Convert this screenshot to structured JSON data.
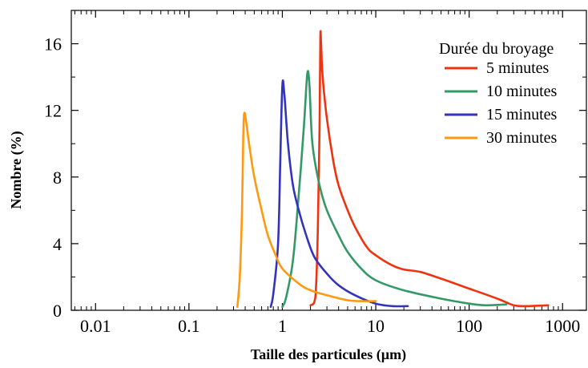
{
  "chart_data": {
    "type": "line",
    "title": "",
    "xlabel": "Taille des particules (µm)",
    "ylabel": "Nombre (%)",
    "x_scale": "log",
    "xlim": [
      0.0055,
      1800
    ],
    "ylim": [
      0,
      18
    ],
    "x_ticks": [
      0.01,
      0.1,
      1,
      10,
      100,
      1000
    ],
    "x_tick_labels": [
      "0.01",
      "0.1",
      "1",
      "10",
      "100",
      "1000"
    ],
    "y_ticks": [
      0,
      4,
      8,
      12,
      16
    ],
    "y_tick_labels": [
      "0",
      "4",
      "8",
      "12",
      "16"
    ],
    "grid": false,
    "legend": {
      "title": "Durée du broyage",
      "placement": "top-right"
    },
    "series": [
      {
        "name": "5 minutes",
        "color": "#ee3311",
        "points": [
          [
            2.0,
            0.3
          ],
          [
            2.2,
            0.5
          ],
          [
            2.3,
            1.5
          ],
          [
            2.4,
            5
          ],
          [
            2.5,
            11
          ],
          [
            2.55,
            16.4
          ],
          [
            2.6,
            16.0
          ],
          [
            2.7,
            14
          ],
          [
            3.0,
            11.5
          ],
          [
            3.5,
            9
          ],
          [
            4,
            7.5
          ],
          [
            5,
            6.0
          ],
          [
            6,
            5.0
          ],
          [
            8,
            3.8
          ],
          [
            10,
            3.3
          ],
          [
            15,
            2.7
          ],
          [
            20,
            2.45
          ],
          [
            30,
            2.3
          ],
          [
            50,
            1.9
          ],
          [
            100,
            1.3
          ],
          [
            200,
            0.7
          ],
          [
            300,
            0.3
          ],
          [
            400,
            0.25
          ],
          [
            700,
            0.3
          ]
        ]
      },
      {
        "name": "10 minutes",
        "color": "#339966",
        "points": [
          [
            1.0,
            0.2
          ],
          [
            1.1,
            0.8
          ],
          [
            1.3,
            3
          ],
          [
            1.5,
            7
          ],
          [
            1.7,
            11
          ],
          [
            1.85,
            14.2
          ],
          [
            1.95,
            13.5
          ],
          [
            2.1,
            10
          ],
          [
            2.5,
            7.5
          ],
          [
            3,
            6
          ],
          [
            4,
            4.5
          ],
          [
            5,
            3.5
          ],
          [
            7,
            2.5
          ],
          [
            10,
            1.8
          ],
          [
            20,
            1.2
          ],
          [
            50,
            0.7
          ],
          [
            100,
            0.4
          ],
          [
            150,
            0.3
          ],
          [
            250,
            0.35
          ]
        ]
      },
      {
        "name": "15 minutes",
        "color": "#3333bb",
        "points": [
          [
            0.75,
            0.2
          ],
          [
            0.8,
            1.0
          ],
          [
            0.9,
            4
          ],
          [
            0.95,
            9
          ],
          [
            1.0,
            13.5
          ],
          [
            1.05,
            13.0
          ],
          [
            1.15,
            10
          ],
          [
            1.3,
            7.5
          ],
          [
            1.5,
            6
          ],
          [
            1.8,
            4.5
          ],
          [
            2.2,
            3.2
          ],
          [
            3,
            2.2
          ],
          [
            4,
            1.5
          ],
          [
            6,
            0.9
          ],
          [
            10,
            0.4
          ],
          [
            15,
            0.25
          ],
          [
            22,
            0.25
          ]
        ]
      },
      {
        "name": "30 minutes",
        "color": "#ff9911",
        "points": [
          [
            0.33,
            0.2
          ],
          [
            0.35,
            2.0
          ],
          [
            0.37,
            6
          ],
          [
            0.38,
            10
          ],
          [
            0.39,
            11.8
          ],
          [
            0.41,
            11.3
          ],
          [
            0.44,
            10
          ],
          [
            0.5,
            8
          ],
          [
            0.6,
            6
          ],
          [
            0.7,
            4.5
          ],
          [
            0.85,
            3.3
          ],
          [
            1,
            2.5
          ],
          [
            1.5,
            1.6
          ],
          [
            2,
            1.2
          ],
          [
            3,
            0.9
          ],
          [
            5,
            0.6
          ],
          [
            7,
            0.55
          ],
          [
            10,
            0.55
          ]
        ]
      }
    ]
  }
}
